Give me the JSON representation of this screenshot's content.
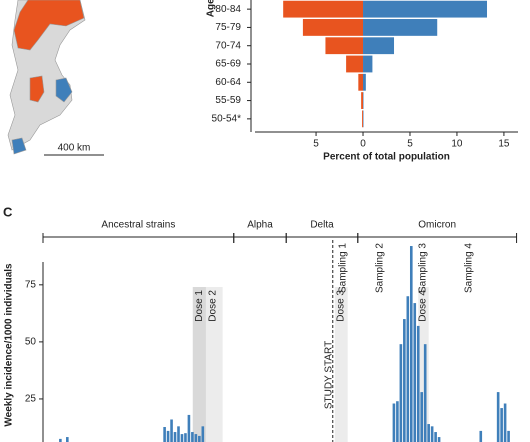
{
  "map": {
    "scale_label": "400 km"
  },
  "panel_label": "C",
  "chart_data": [
    {
      "type": "pyramid",
      "ylabel": "Age (years)",
      "xlabel": "Percent of total population",
      "categories": [
        "80-84",
        "75-79",
        "70-74",
        "65-69",
        "60-64",
        "55-59",
        "50-54*"
      ],
      "series": [
        {
          "color": "#e8541f",
          "side": "left",
          "values": [
            8.5,
            6.4,
            4.0,
            1.8,
            0.5,
            0.2,
            0.1
          ]
        },
        {
          "color": "#3f7fba",
          "side": "right",
          "values": [
            13.2,
            7.9,
            3.3,
            1.0,
            0.3,
            0.05,
            0.05
          ]
        }
      ],
      "xlim": [
        -11.5,
        16.5
      ],
      "xticks": [
        {
          "value": -5,
          "label": "5"
        },
        0,
        5,
        10,
        15
      ]
    },
    {
      "type": "bar",
      "ylabel": "Weekly incidence/1000 individuals",
      "color": "#3f7fba",
      "x": [
        5,
        7,
        35,
        36,
        37,
        38,
        39,
        40,
        41,
        42,
        43,
        44,
        45,
        46,
        101,
        102,
        103,
        104,
        105,
        106,
        107,
        108,
        109,
        110,
        111,
        112,
        113,
        114,
        126,
        131,
        132,
        133,
        134
      ],
      "values": [
        7.5,
        8.3,
        12.7,
        11,
        16,
        10.5,
        13,
        9.6,
        10,
        18,
        10.5,
        9.6,
        8.8,
        13,
        23,
        24,
        49,
        60,
        70,
        92,
        67,
        57,
        28,
        49,
        14,
        13,
        10.5,
        8.3,
        11,
        28,
        21,
        23,
        11
      ],
      "xlim": [
        0,
        137
      ],
      "ylim": [
        0,
        85
      ],
      "yticks": [
        25,
        50,
        75
      ],
      "periods": [
        {
          "label": "Ancestral strains",
          "start": 0,
          "end": 54.9
        },
        {
          "label": "Alpha",
          "start": 54.9,
          "end": 70
        },
        {
          "label": "Delta",
          "start": 70,
          "end": 90.6
        },
        {
          "label": "Omicron",
          "start": 90.6,
          "end": 136.3
        }
      ],
      "shaded": [
        {
          "label": "Dose 1",
          "start": 43.1,
          "end": 46.9,
          "label_x": 45,
          "color": "#d9d9d9"
        },
        {
          "label": "Dose 2",
          "start": 46.9,
          "end": 51.7,
          "label_x": 48.9,
          "color": "#ececec"
        },
        {
          "label": "Dose 3",
          "start": 84,
          "end": 87.7,
          "label_x": 85.7,
          "color": "#ececec"
        },
        {
          "label": "Dose 4",
          "start": 108,
          "end": 111,
          "label_x": 109.4,
          "color": "#ececec"
        }
      ],
      "study_start": {
        "label": "STUDY START",
        "x": 83.4
      },
      "samplings": [
        {
          "label": "Sampling 1",
          "x": 86.3
        },
        {
          "label": "Sampling 2",
          "x": 97
        },
        {
          "label": "Sampling 3",
          "x": 109.4
        },
        {
          "label": "Sampling 4",
          "x": 122.6
        }
      ]
    }
  ]
}
